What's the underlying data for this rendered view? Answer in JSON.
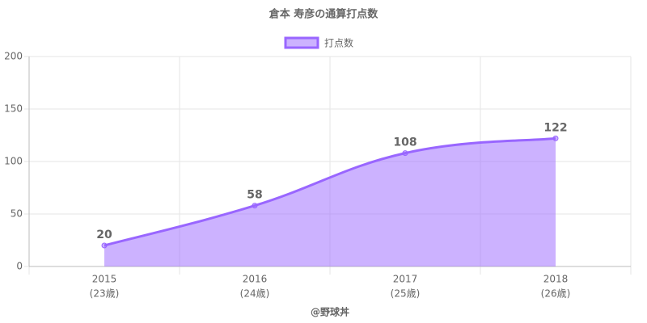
{
  "chart_data": {
    "type": "area",
    "title": "倉本 寿彦の通算打点数",
    "categories": [
      "2015",
      "2016",
      "2017",
      "2018"
    ],
    "category_sublabels": [
      "(23歳)",
      "(24歳)",
      "(25歳)",
      "(26歳)"
    ],
    "x_label": "@野球丼",
    "series": [
      {
        "name": "打点数",
        "color": "#9966ff",
        "fill_color": "rgba(153,102,255,0.5)",
        "values": [
          20,
          58,
          108,
          122
        ]
      }
    ],
    "ylim": [
      0,
      200
    ],
    "yticks": [
      0,
      50,
      100,
      150,
      200
    ],
    "grid": true,
    "legend": "top"
  }
}
